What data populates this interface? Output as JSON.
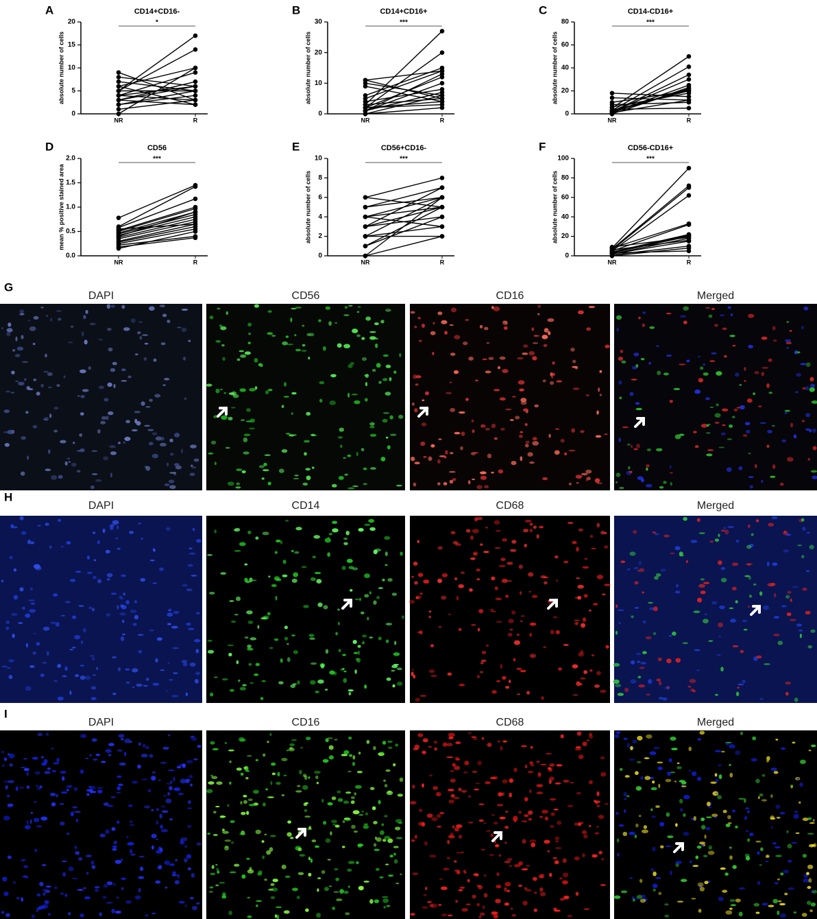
{
  "chart_data": [
    {
      "type": "paired",
      "letter": "A",
      "title": "CD14+CD16-",
      "ylabel": "absolute number of cells",
      "categories": [
        "NR",
        "R"
      ],
      "significance": "*",
      "ylim": [
        0,
        20
      ],
      "yticks": [
        0,
        5,
        10,
        15,
        20
      ],
      "pairs": [
        [
          9,
          3
        ],
        [
          8,
          6
        ],
        [
          7,
          5
        ],
        [
          6,
          10
        ],
        [
          5,
          17
        ],
        [
          5,
          14
        ],
        [
          4,
          9
        ],
        [
          4,
          6
        ],
        [
          3,
          2
        ],
        [
          3,
          7
        ],
        [
          2,
          5
        ],
        [
          2,
          4
        ],
        [
          1,
          3
        ],
        [
          0,
          10
        ],
        [
          6,
          2
        ],
        [
          5,
          5
        ],
        [
          3,
          6
        ],
        [
          4,
          3
        ]
      ]
    },
    {
      "type": "paired",
      "letter": "B",
      "title": "CD14+CD16+",
      "ylabel": "absolute number of cells",
      "categories": [
        "NR",
        "R"
      ],
      "significance": "***",
      "ylim": [
        0,
        30
      ],
      "yticks": [
        0,
        10,
        20,
        30
      ],
      "pairs": [
        [
          11,
          5
        ],
        [
          10,
          6
        ],
        [
          9,
          4
        ],
        [
          6,
          15
        ],
        [
          5,
          14
        ],
        [
          3,
          27
        ],
        [
          2,
          20
        ],
        [
          2,
          12
        ],
        [
          1,
          10
        ],
        [
          0,
          6
        ],
        [
          1,
          7
        ],
        [
          2,
          3
        ],
        [
          3,
          5
        ],
        [
          0,
          2
        ],
        [
          4,
          8
        ],
        [
          2,
          4
        ],
        [
          1,
          13
        ],
        [
          11,
          14
        ]
      ]
    },
    {
      "type": "paired",
      "letter": "C",
      "title": "CD14-CD16+",
      "ylabel": "absolute number of cells",
      "categories": [
        "NR",
        "R"
      ],
      "significance": "***",
      "ylim": [
        0,
        80
      ],
      "yticks": [
        0,
        20,
        40,
        60,
        80
      ],
      "pairs": [
        [
          18,
          15
        ],
        [
          14,
          12
        ],
        [
          10,
          20
        ],
        [
          8,
          10
        ],
        [
          5,
          50
        ],
        [
          3,
          41
        ],
        [
          2,
          34
        ],
        [
          2,
          30
        ],
        [
          1,
          25
        ],
        [
          0,
          22
        ],
        [
          3,
          20
        ],
        [
          6,
          18
        ],
        [
          4,
          5
        ],
        [
          1,
          12
        ],
        [
          0,
          23
        ],
        [
          2,
          21
        ]
      ]
    },
    {
      "type": "paired",
      "letter": "D",
      "title": "CD56",
      "ylabel": "mean % positive stained area",
      "categories": [
        "NR",
        "R"
      ],
      "significance": "***",
      "ylim": [
        0,
        2
      ],
      "yticks": [
        {
          "value": 0,
          "label": "0.0"
        },
        0.5,
        {
          "value": 1,
          "label": "1.0"
        },
        1.5,
        {
          "value": 2,
          "label": "2.0"
        }
      ],
      "pairs": [
        [
          0.78,
          1.45
        ],
        [
          0.6,
          1.42
        ],
        [
          0.58,
          1.17
        ],
        [
          0.52,
          1.0
        ],
        [
          0.5,
          0.97
        ],
        [
          0.47,
          0.9
        ],
        [
          0.45,
          0.85
        ],
        [
          0.42,
          0.8
        ],
        [
          0.38,
          0.75
        ],
        [
          0.35,
          0.7
        ],
        [
          0.3,
          0.65
        ],
        [
          0.28,
          0.6
        ],
        [
          0.25,
          0.55
        ],
        [
          0.22,
          0.4
        ],
        [
          0.18,
          0.37
        ],
        [
          0.15,
          0.5
        ],
        [
          0.4,
          0.9
        ],
        [
          0.55,
          0.65
        ]
      ]
    },
    {
      "type": "paired",
      "letter": "E",
      "title": "CD56+CD16-",
      "ylabel": "absolute number of cells",
      "categories": [
        "NR",
        "R"
      ],
      "significance": "***",
      "ylim": [
        0,
        10
      ],
      "yticks": [
        0,
        2,
        4,
        6,
        8,
        10
      ],
      "pairs": [
        [
          6,
          8
        ],
        [
          6,
          5
        ],
        [
          5,
          7
        ],
        [
          5,
          6
        ],
        [
          4,
          6
        ],
        [
          4,
          5
        ],
        [
          3,
          7
        ],
        [
          3,
          4
        ],
        [
          2,
          6
        ],
        [
          2,
          3
        ],
        [
          2,
          2
        ],
        [
          1,
          5
        ],
        [
          1,
          4
        ],
        [
          0,
          6
        ],
        [
          0,
          2
        ],
        [
          4,
          3
        ],
        [
          3,
          5
        ]
      ]
    },
    {
      "type": "paired",
      "letter": "F",
      "title": "CD56-CD16+",
      "ylabel": "absolute number of cells",
      "categories": [
        "NR",
        "R"
      ],
      "significance": "***",
      "ylim": [
        0,
        100
      ],
      "yticks": [
        0,
        20,
        40,
        60,
        80,
        100
      ],
      "pairs": [
        [
          8,
          90
        ],
        [
          7,
          72
        ],
        [
          6,
          70
        ],
        [
          5,
          62
        ],
        [
          8,
          33
        ],
        [
          5,
          32
        ],
        [
          4,
          22
        ],
        [
          3,
          20
        ],
        [
          2,
          18
        ],
        [
          6,
          16
        ],
        [
          1,
          10
        ],
        [
          0,
          8
        ],
        [
          3,
          5
        ],
        [
          9,
          19
        ],
        [
          2,
          15
        ],
        [
          4,
          21
        ]
      ]
    }
  ],
  "image_rows": [
    {
      "letter": "G",
      "panels": [
        "DAPI",
        "CD56",
        "CD16",
        "Merged"
      ]
    },
    {
      "letter": "H",
      "panels": [
        "DAPI",
        "CD14",
        "CD68",
        "Merged"
      ]
    },
    {
      "letter": "I",
      "panels": [
        "DAPI",
        "CD16",
        "CD68",
        "Merged"
      ]
    }
  ]
}
